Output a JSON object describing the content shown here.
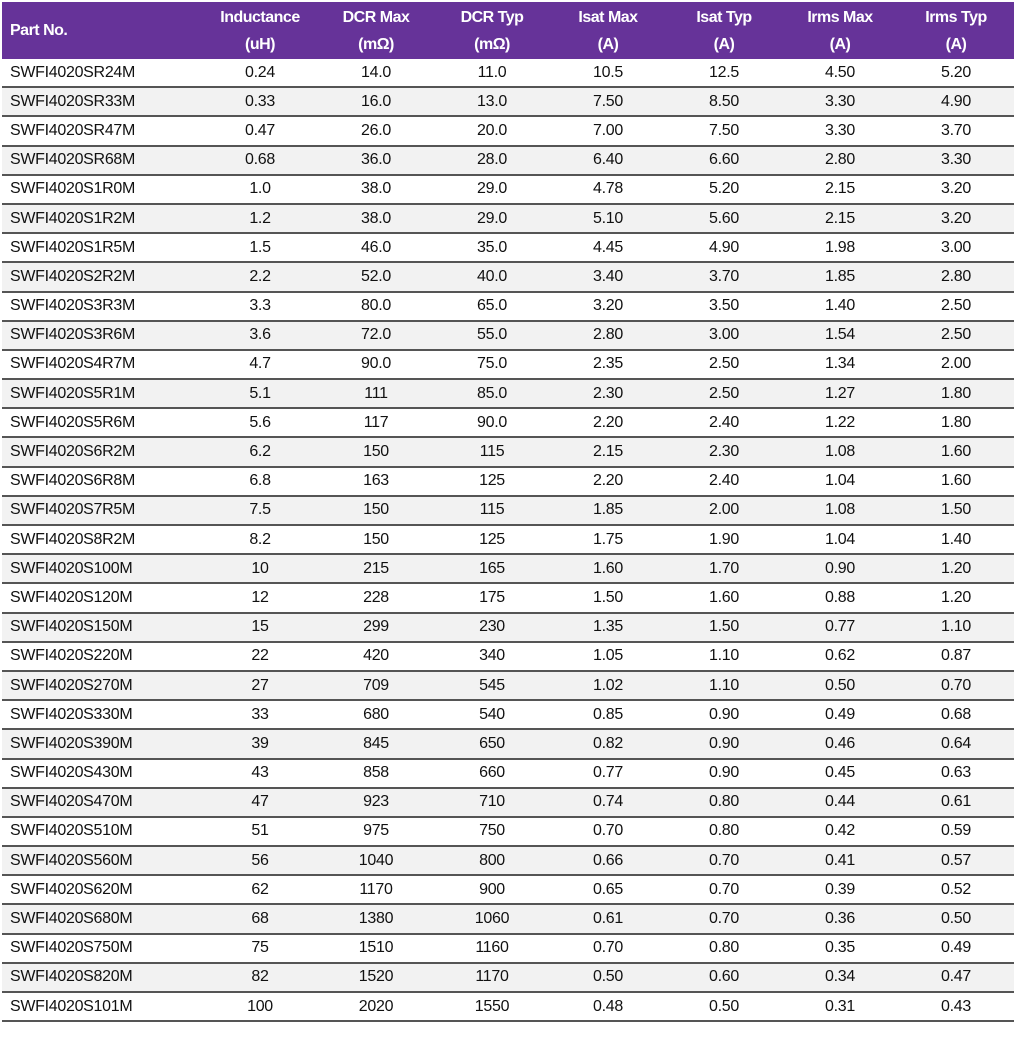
{
  "header_color": "#663399",
  "columns": [
    {
      "name": "Part No.",
      "unit": ""
    },
    {
      "name": "Inductance",
      "unit": "(uH)"
    },
    {
      "name": "DCR Max",
      "unit": "(mΩ)"
    },
    {
      "name": "DCR Typ",
      "unit": "(mΩ)"
    },
    {
      "name": "Isat Max",
      "unit": "(A)"
    },
    {
      "name": "Isat Typ",
      "unit": "(A)"
    },
    {
      "name": "Irms Max",
      "unit": "(A)"
    },
    {
      "name": "Irms Typ",
      "unit": "(A)"
    }
  ],
  "rows": [
    [
      "SWFI4020SR24M",
      "0.24",
      "14.0",
      "11.0",
      "10.5",
      "12.5",
      "4.50",
      "5.20"
    ],
    [
      "SWFI4020SR33M",
      "0.33",
      "16.0",
      "13.0",
      "7.50",
      "8.50",
      "3.30",
      "4.90"
    ],
    [
      "SWFI4020SR47M",
      "0.47",
      "26.0",
      "20.0",
      "7.00",
      "7.50",
      "3.30",
      "3.70"
    ],
    [
      "SWFI4020SR68M",
      "0.68",
      "36.0",
      "28.0",
      "6.40",
      "6.60",
      "2.80",
      "3.30"
    ],
    [
      "SWFI4020S1R0M",
      "1.0",
      "38.0",
      "29.0",
      "4.78",
      "5.20",
      "2.15",
      "3.20"
    ],
    [
      "SWFI4020S1R2M",
      "1.2",
      "38.0",
      "29.0",
      "5.10",
      "5.60",
      "2.15",
      "3.20"
    ],
    [
      "SWFI4020S1R5M",
      "1.5",
      "46.0",
      "35.0",
      "4.45",
      "4.90",
      "1.98",
      "3.00"
    ],
    [
      "SWFI4020S2R2M",
      "2.2",
      "52.0",
      "40.0",
      "3.40",
      "3.70",
      "1.85",
      "2.80"
    ],
    [
      "SWFI4020S3R3M",
      "3.3",
      "80.0",
      "65.0",
      "3.20",
      "3.50",
      "1.40",
      "2.50"
    ],
    [
      "SWFI4020S3R6M",
      "3.6",
      "72.0",
      "55.0",
      "2.80",
      "3.00",
      "1.54",
      "2.50"
    ],
    [
      "SWFI4020S4R7M",
      "4.7",
      "90.0",
      "75.0",
      "2.35",
      "2.50",
      "1.34",
      "2.00"
    ],
    [
      "SWFI4020S5R1M",
      "5.1",
      "111",
      "85.0",
      "2.30",
      "2.50",
      "1.27",
      "1.80"
    ],
    [
      "SWFI4020S5R6M",
      "5.6",
      "117",
      "90.0",
      "2.20",
      "2.40",
      "1.22",
      "1.80"
    ],
    [
      "SWFI4020S6R2M",
      "6.2",
      "150",
      "115",
      "2.15",
      "2.30",
      "1.08",
      "1.60"
    ],
    [
      "SWFI4020S6R8M",
      "6.8",
      "163",
      "125",
      "2.20",
      "2.40",
      "1.04",
      "1.60"
    ],
    [
      "SWFI4020S7R5M",
      "7.5",
      "150",
      "115",
      "1.85",
      "2.00",
      "1.08",
      "1.50"
    ],
    [
      "SWFI4020S8R2M",
      "8.2",
      "150",
      "125",
      "1.75",
      "1.90",
      "1.04",
      "1.40"
    ],
    [
      "SWFI4020S100M",
      "10",
      "215",
      "165",
      "1.60",
      "1.70",
      "0.90",
      "1.20"
    ],
    [
      "SWFI4020S120M",
      "12",
      "228",
      "175",
      "1.50",
      "1.60",
      "0.88",
      "1.20"
    ],
    [
      "SWFI4020S150M",
      "15",
      "299",
      "230",
      "1.35",
      "1.50",
      "0.77",
      "1.10"
    ],
    [
      "SWFI4020S220M",
      "22",
      "420",
      "340",
      "1.05",
      "1.10",
      "0.62",
      "0.87"
    ],
    [
      "SWFI4020S270M",
      "27",
      "709",
      "545",
      "1.02",
      "1.10",
      "0.50",
      "0.70"
    ],
    [
      "SWFI4020S330M",
      "33",
      "680",
      "540",
      "0.85",
      "0.90",
      "0.49",
      "0.68"
    ],
    [
      "SWFI4020S390M",
      "39",
      "845",
      "650",
      "0.82",
      "0.90",
      "0.46",
      "0.64"
    ],
    [
      "SWFI4020S430M",
      "43",
      "858",
      "660",
      "0.77",
      "0.90",
      "0.45",
      "0.63"
    ],
    [
      "SWFI4020S470M",
      "47",
      "923",
      "710",
      "0.74",
      "0.80",
      "0.44",
      "0.61"
    ],
    [
      "SWFI4020S510M",
      "51",
      "975",
      "750",
      "0.70",
      "0.80",
      "0.42",
      "0.59"
    ],
    [
      "SWFI4020S560M",
      "56",
      "1040",
      "800",
      "0.66",
      "0.70",
      "0.41",
      "0.57"
    ],
    [
      "SWFI4020S620M",
      "62",
      "1170",
      "900",
      "0.65",
      "0.70",
      "0.39",
      "0.52"
    ],
    [
      "SWFI4020S680M",
      "68",
      "1380",
      "1060",
      "0.61",
      "0.70",
      "0.36",
      "0.50"
    ],
    [
      "SWFI4020S750M",
      "75",
      "1510",
      "1160",
      "0.70",
      "0.80",
      "0.35",
      "0.49"
    ],
    [
      "SWFI4020S820M",
      "82",
      "1520",
      "1170",
      "0.50",
      "0.60",
      "0.34",
      "0.47"
    ],
    [
      "SWFI4020S101M",
      "100",
      "2020",
      "1550",
      "0.48",
      "0.50",
      "0.31",
      "0.43"
    ]
  ]
}
